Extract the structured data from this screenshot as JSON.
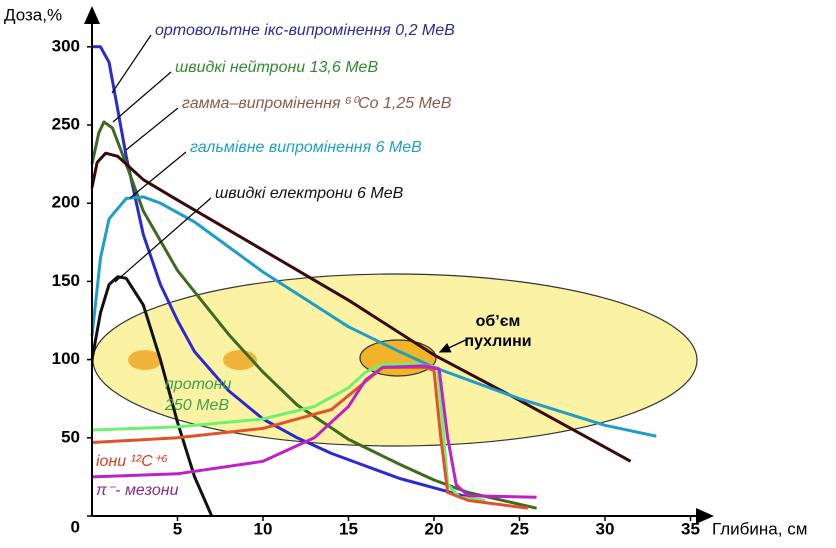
{
  "chart_data": {
    "type": "line",
    "ylabel": "Доза,%",
    "xlabel": "Глибина, см",
    "xlim": [
      0,
      36
    ],
    "ylim": [
      0,
      320
    ],
    "xticks": [
      5,
      10,
      15,
      20,
      25,
      30,
      35
    ],
    "yticks": [
      0,
      50,
      100,
      150,
      200,
      250,
      300
    ],
    "tumor_label": [
      "об’єм",
      "пухлини"
    ],
    "series": [
      {
        "label": [
          "ортовольтне  ікс-випромінення 0,2 МеВ"
        ],
        "color": "#2a2ad0",
        "x": [
          0,
          0.5,
          1,
          1.5,
          2,
          3,
          4,
          5,
          6,
          8,
          10,
          12,
          14,
          16,
          18,
          20,
          22
        ],
        "values": [
          300,
          300,
          290,
          260,
          230,
          180,
          148,
          125,
          105,
          80,
          62,
          50,
          40,
          32,
          24,
          18,
          12
        ]
      },
      {
        "label": [
          "швидкі нейтрони  13,6  МеВ"
        ],
        "color": "#3d6b1c",
        "x": [
          0,
          0.4,
          0.7,
          1.2,
          2,
          3,
          5,
          8,
          10,
          12,
          15,
          18,
          20,
          22,
          26
        ],
        "values": [
          225,
          245,
          252,
          248,
          225,
          195,
          157,
          116,
          92,
          71,
          49,
          33,
          23,
          15,
          5
        ]
      },
      {
        "label": [
          "гамма–випромінення ⁶⁰Co  1,25 МеВ"
        ],
        "color": "#3a0808",
        "x": [
          0,
          0.3,
          0.8,
          1.5,
          3,
          5,
          10,
          15,
          20,
          25,
          30,
          31.5
        ],
        "values": [
          210,
          226,
          232,
          230,
          215,
          202,
          170,
          138,
          103,
          74,
          44,
          35
        ]
      },
      {
        "label": [
          "гальмівне випромінення  6 МеВ"
        ],
        "color": "#1d9ec8",
        "x": [
          0,
          0.5,
          1,
          2,
          3,
          4,
          6,
          8,
          10,
          12,
          15,
          18,
          20,
          25,
          30,
          33
        ],
        "values": [
          115,
          165,
          190,
          203,
          204,
          200,
          188,
          172,
          156,
          142,
          121,
          105,
          95,
          75,
          58,
          51
        ]
      },
      {
        "label": [
          "швидкі електрони  6 МеВ"
        ],
        "color": "#111111",
        "x": [
          0,
          0.5,
          1,
          1.5,
          2,
          3,
          4,
          5,
          6,
          7
        ],
        "values": [
          100,
          130,
          148,
          153,
          152,
          135,
          100,
          60,
          25,
          0
        ]
      },
      {
        "label": [
          "протони",
          "250 МеВ"
        ],
        "color": "#6ff06f",
        "x": [
          0,
          5,
          10,
          13,
          15,
          16,
          17,
          19,
          20.2,
          20.5,
          20.8,
          21.5,
          23
        ],
        "values": [
          55,
          57,
          62,
          70,
          82,
          92,
          97,
          97,
          95,
          60,
          20,
          12,
          10
        ]
      },
      {
        "label": [
          "іони ¹²C⁺⁶"
        ],
        "color": "#e0522b",
        "x": [
          0,
          5,
          10,
          14,
          16,
          17,
          19.5,
          20,
          20.4,
          20.8,
          22,
          25.5
        ],
        "values": [
          47,
          50,
          56,
          68,
          86,
          95,
          95,
          93,
          50,
          15,
          10,
          5
        ]
      },
      {
        "label": [
          "π⁻- мезони"
        ],
        "color": "#c020c8",
        "x": [
          0,
          5,
          10,
          13,
          15,
          16,
          17,
          19.5,
          20.3,
          20.8,
          21.3,
          22,
          26
        ],
        "values": [
          25,
          27,
          35,
          50,
          70,
          87,
          95,
          96,
          94,
          50,
          20,
          13,
          12
        ]
      }
    ]
  }
}
